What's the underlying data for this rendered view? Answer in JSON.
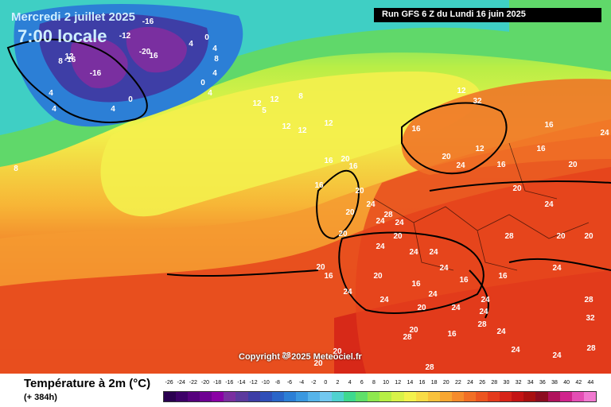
{
  "header": {
    "date": "Mercredi 2 juillet 2025",
    "time": "7:00 locale",
    "run": "Run GFS 6 Z du Lundi 16 juin 2025"
  },
  "copyright": "Copyright © 2025 Meteociel.fr",
  "footer": {
    "variable": "Température à 2m (°C)",
    "lead_time": "(+ 384h)"
  },
  "legend": {
    "labels": [
      "-26",
      "-24",
      "-22",
      "-20",
      "-18",
      "-16",
      "-14",
      "-12",
      "-10",
      "-8",
      "-6",
      "-4",
      "-2",
      "0",
      "2",
      "4",
      "6",
      "8",
      "10",
      "12",
      "14",
      "16",
      "18",
      "20",
      "22",
      "24",
      "26",
      "28",
      "30",
      "32",
      "34",
      "36",
      "38",
      "40",
      "42",
      "44"
    ],
    "colors": [
      "#2a0050",
      "#3d0068",
      "#56007d",
      "#6e0092",
      "#8a00a5",
      "#7a2fa0",
      "#5c3a9e",
      "#3e3ea6",
      "#2f4fb8",
      "#2a65c8",
      "#2c7fd6",
      "#3a98e0",
      "#56b4ea",
      "#72c8f0",
      "#4fd2d0",
      "#3ed98f",
      "#5fe06a",
      "#8ee84e",
      "#b6ef45",
      "#d8f249",
      "#f3f24d",
      "#f8dc46",
      "#f9c23c",
      "#f8a732",
      "#f68b2b",
      "#f26f25",
      "#ec5520",
      "#e43b1c",
      "#d82418",
      "#c41414",
      "#a81010",
      "#8c0c20",
      "#b0125c",
      "#d0248c",
      "#e44eb4",
      "#f07ad0"
    ]
  },
  "isotherms": [
    "-16",
    "-12",
    "-16",
    "-20",
    "16",
    "-16",
    "12",
    "8",
    "4",
    "4",
    "0",
    "4",
    "4",
    "0",
    "4",
    "8",
    "4",
    "0",
    "4",
    "12",
    "8",
    "12",
    "5",
    "12",
    "12",
    "12",
    "8",
    "16",
    "16",
    "20",
    "24",
    "20",
    "16",
    "20",
    "24",
    "28",
    "20",
    "24",
    "24",
    "24",
    "24",
    "20",
    "16",
    "24",
    "20",
    "20",
    "16",
    "24",
    "16",
    "20",
    "24",
    "24",
    "24",
    "16",
    "20",
    "24",
    "28",
    "24",
    "12",
    "16",
    "20",
    "24",
    "32",
    "28",
    "24",
    "24",
    "28",
    "20",
    "28",
    "20",
    "16",
    "12",
    "16",
    "20",
    "24",
    "20",
    "20",
    "16",
    "20",
    "24",
    "16",
    "32",
    "28",
    "28",
    "24",
    "24",
    "28"
  ]
}
